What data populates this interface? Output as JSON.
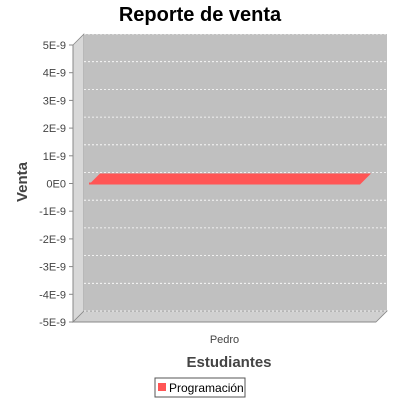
{
  "chart_data": {
    "type": "bar",
    "title": "Reporte de venta",
    "xlabel": "Estudiantes",
    "ylabel": "Venta",
    "categories": [
      "Pedro"
    ],
    "series": [
      {
        "name": "Programación",
        "values": [
          0
        ],
        "color": "#ff5555"
      }
    ],
    "ylim": [
      -5e-09,
      5e-09
    ],
    "yticks": [
      {
        "value": 5e-09,
        "label": "5E-9"
      },
      {
        "value": 4e-09,
        "label": "4E-9"
      },
      {
        "value": 3e-09,
        "label": "3E-9"
      },
      {
        "value": 2e-09,
        "label": "2E-9"
      },
      {
        "value": 1e-09,
        "label": "1E-9"
      },
      {
        "value": 0,
        "label": "0E0"
      },
      {
        "value": -1e-09,
        "label": "-1E-9"
      },
      {
        "value": -2e-09,
        "label": "-2E-9"
      },
      {
        "value": -3e-09,
        "label": "-3E-9"
      },
      {
        "value": -4e-09,
        "label": "-4E-9"
      },
      {
        "value": -5e-09,
        "label": "-5E-9"
      }
    ],
    "grid": true,
    "legend_position": "bottom-left",
    "colors": {
      "plot_background": "#c0c0c0",
      "wall_side": "#d8d8d8",
      "floor": "#d0d0d0",
      "gridline": "#ffffff"
    }
  }
}
